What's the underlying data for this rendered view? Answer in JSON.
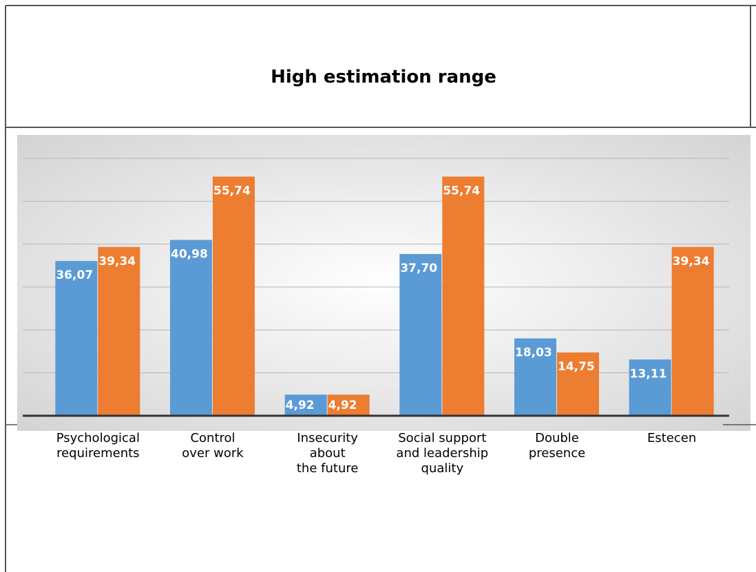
{
  "chart_data": {
    "type": "bar",
    "title": "High estimation range",
    "categories": [
      "Psychological\nrequirements",
      "Control\nover work",
      "Insecurity\nabout\nthe future",
      "Social support\nand leadership\nquality",
      "Double\npresence",
      "Estecen"
    ],
    "series": [
      {
        "color": "#5b9bd5",
        "values": [
          36.07,
          40.98,
          4.92,
          37.7,
          18.03,
          13.11
        ],
        "value_labels": [
          "36,07",
          "40,98",
          "4,92",
          "37,70",
          "18,03",
          "13,11"
        ]
      },
      {
        "color": "#ed7d31",
        "values": [
          39.34,
          55.74,
          4.92,
          55.74,
          14.75,
          39.34
        ],
        "value_labels": [
          "39,34",
          "55,74",
          "4,92",
          "55,74",
          "14,75",
          "39,34"
        ]
      }
    ],
    "ylim": [
      0,
      60
    ],
    "yticks": [
      0,
      10,
      20,
      30,
      40,
      50,
      60
    ],
    "grid": true
  }
}
